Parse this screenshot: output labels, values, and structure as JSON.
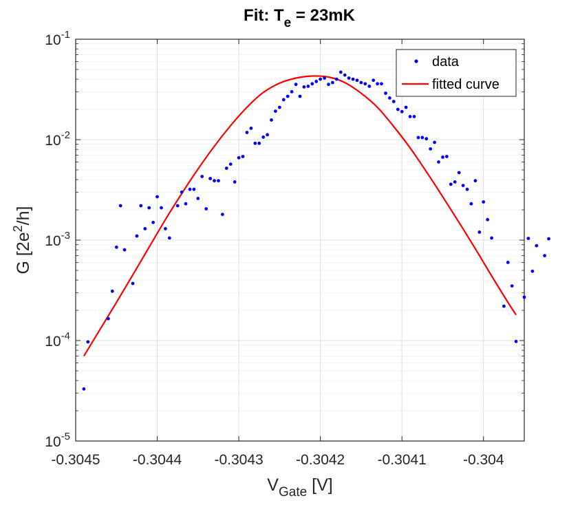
{
  "chart_data": {
    "type": "scatter",
    "title": {
      "base": "Fit: T",
      "sub": "e",
      "rest": " = 23mK"
    },
    "xlabel": {
      "base": "V",
      "sub": "Gate",
      "rest": " [V]"
    },
    "ylabel": {
      "pre": "G [2e",
      "sup": "2",
      "post": "/h]"
    },
    "xlim": [
      -0.3045,
      -0.30395
    ],
    "ylim": [
      1e-05,
      0.1
    ],
    "yscale": "log",
    "grid": true,
    "minor_grid": true,
    "legend_position": "top-right",
    "x_ticks": [
      {
        "value": -0.3045,
        "label": "-0.3045"
      },
      {
        "value": -0.3044,
        "label": "-0.3044"
      },
      {
        "value": -0.3043,
        "label": "-0.3043"
      },
      {
        "value": -0.3042,
        "label": "-0.3042"
      },
      {
        "value": -0.3041,
        "label": "-0.3041"
      },
      {
        "value": -0.304,
        "label": "-0.304"
      }
    ],
    "y_ticks": [
      {
        "value": 1e-05,
        "base": "10",
        "exp": "-5"
      },
      {
        "value": 0.0001,
        "base": "10",
        "exp": "-4"
      },
      {
        "value": 0.001,
        "base": "10",
        "exp": "-3"
      },
      {
        "value": 0.01,
        "base": "10",
        "exp": "-2"
      },
      {
        "value": 0.1,
        "base": "10",
        "exp": "-1"
      }
    ],
    "series": [
      {
        "name": "data",
        "kind": "markers",
        "color": "#0000ff",
        "points": [
          [
            -0.30449,
            3.3e-05
          ],
          [
            -0.304485,
            9.7e-05
          ],
          [
            -0.30446,
            0.000165
          ],
          [
            -0.304455,
            0.00031
          ],
          [
            -0.30445,
            0.00085
          ],
          [
            -0.304445,
            0.0022
          ],
          [
            -0.30444,
            0.0008
          ],
          [
            -0.30443,
            0.00037
          ],
          [
            -0.304425,
            0.0011
          ],
          [
            -0.30442,
            0.0022
          ],
          [
            -0.304415,
            0.0013
          ],
          [
            -0.30441,
            0.0021
          ],
          [
            -0.304405,
            0.0015
          ],
          [
            -0.3044,
            0.0027
          ],
          [
            -0.304395,
            0.0021
          ],
          [
            -0.30439,
            0.0013
          ],
          [
            -0.304385,
            0.00105
          ],
          [
            -0.304375,
            0.0022
          ],
          [
            -0.30437,
            0.003
          ],
          [
            -0.304365,
            0.0023
          ],
          [
            -0.30436,
            0.0032
          ],
          [
            -0.304355,
            0.0032
          ],
          [
            -0.30435,
            0.0026
          ],
          [
            -0.304345,
            0.0043
          ],
          [
            -0.30434,
            0.00205
          ],
          [
            -0.304335,
            0.0041
          ],
          [
            -0.30433,
            0.0039
          ],
          [
            -0.304325,
            0.0039
          ],
          [
            -0.30432,
            0.0018
          ],
          [
            -0.304315,
            0.0052
          ],
          [
            -0.30431,
            0.0057
          ],
          [
            -0.304305,
            0.0038
          ],
          [
            -0.3043,
            0.0066
          ],
          [
            -0.304295,
            0.0068
          ],
          [
            -0.30429,
            0.0118
          ],
          [
            -0.304285,
            0.013
          ],
          [
            -0.30428,
            0.0092
          ],
          [
            -0.304275,
            0.0092
          ],
          [
            -0.30427,
            0.0106
          ],
          [
            -0.304265,
            0.0112
          ],
          [
            -0.30426,
            0.0157
          ],
          [
            -0.304255,
            0.0192
          ],
          [
            -0.30425,
            0.021
          ],
          [
            -0.304245,
            0.025
          ],
          [
            -0.30424,
            0.027
          ],
          [
            -0.304235,
            0.03
          ],
          [
            -0.30423,
            0.0355
          ],
          [
            -0.304225,
            0.027
          ],
          [
            -0.30422,
            0.0335
          ],
          [
            -0.304215,
            0.034
          ],
          [
            -0.30421,
            0.036
          ],
          [
            -0.304205,
            0.038
          ],
          [
            -0.3042,
            0.04
          ],
          [
            -0.304195,
            0.041
          ],
          [
            -0.30419,
            0.0355
          ],
          [
            -0.304185,
            0.037
          ],
          [
            -0.30418,
            0.04
          ],
          [
            -0.304175,
            0.047
          ],
          [
            -0.30417,
            0.044
          ],
          [
            -0.304165,
            0.041
          ],
          [
            -0.30416,
            0.04
          ],
          [
            -0.304155,
            0.039
          ],
          [
            -0.30415,
            0.037
          ],
          [
            -0.304145,
            0.036
          ],
          [
            -0.30414,
            0.034
          ],
          [
            -0.304135,
            0.039
          ],
          [
            -0.30413,
            0.036
          ],
          [
            -0.304125,
            0.036
          ],
          [
            -0.30412,
            0.029
          ],
          [
            -0.304115,
            0.026
          ],
          [
            -0.30411,
            0.024
          ],
          [
            -0.304105,
            0.02
          ],
          [
            -0.3041,
            0.019
          ],
          [
            -0.304095,
            0.021
          ],
          [
            -0.30409,
            0.017
          ],
          [
            -0.304085,
            0.017
          ],
          [
            -0.30408,
            0.0105
          ],
          [
            -0.304075,
            0.0105
          ],
          [
            -0.30407,
            0.0102
          ],
          [
            -0.304065,
            0.0081
          ],
          [
            -0.30406,
            0.0094
          ],
          [
            -0.304055,
            0.006
          ],
          [
            -0.30405,
            0.0067
          ],
          [
            -0.304045,
            0.0068
          ],
          [
            -0.30404,
            0.0036
          ],
          [
            -0.304035,
            0.0038
          ],
          [
            -0.30403,
            0.0047
          ],
          [
            -0.304025,
            0.0035
          ],
          [
            -0.30402,
            0.0032
          ],
          [
            -0.304015,
            0.0023
          ],
          [
            -0.30401,
            0.0039
          ],
          [
            -0.304005,
            0.0012
          ],
          [
            -0.304,
            0.0024
          ],
          [
            -0.303995,
            0.0016
          ],
          [
            -0.30399,
            0.00105
          ],
          [
            -0.303975,
            0.00022
          ],
          [
            -0.30397,
            0.0006
          ],
          [
            -0.303965,
            0.00035
          ],
          [
            -0.30396,
            9.8e-05
          ],
          [
            -0.30395,
            0.00027
          ],
          [
            -0.303945,
            0.00104
          ],
          [
            -0.30394,
            0.00049
          ],
          [
            -0.303935,
            0.00088
          ],
          [
            -0.303925,
            0.0007
          ],
          [
            -0.30392,
            0.00103
          ]
        ]
      },
      {
        "name": "fitted curve",
        "kind": "line",
        "color": "#ff0000",
        "points": [
          [
            -0.30449,
            7e-05
          ],
          [
            -0.30447,
            0.00013
          ],
          [
            -0.30445,
            0.00024
          ],
          [
            -0.30443,
            0.00045
          ],
          [
            -0.30441,
            0.00085
          ],
          [
            -0.30439,
            0.0016
          ],
          [
            -0.30437,
            0.0029
          ],
          [
            -0.30435,
            0.0051
          ],
          [
            -0.30433,
            0.0086
          ],
          [
            -0.30431,
            0.0138
          ],
          [
            -0.30429,
            0.021
          ],
          [
            -0.30427,
            0.0295
          ],
          [
            -0.30425,
            0.0365
          ],
          [
            -0.30423,
            0.041
          ],
          [
            -0.30421,
            0.043
          ],
          [
            -0.30419,
            0.042
          ],
          [
            -0.30417,
            0.037
          ],
          [
            -0.30415,
            0.029
          ],
          [
            -0.30413,
            0.021
          ],
          [
            -0.30411,
            0.0135
          ],
          [
            -0.30409,
            0.0083
          ],
          [
            -0.30407,
            0.0048
          ],
          [
            -0.30405,
            0.0027
          ],
          [
            -0.30403,
            0.0015
          ],
          [
            -0.30401,
            0.00082
          ],
          [
            -0.30399,
            0.00044
          ],
          [
            -0.30397,
            0.00024
          ],
          [
            -0.30396,
            0.00018
          ]
        ]
      }
    ]
  }
}
